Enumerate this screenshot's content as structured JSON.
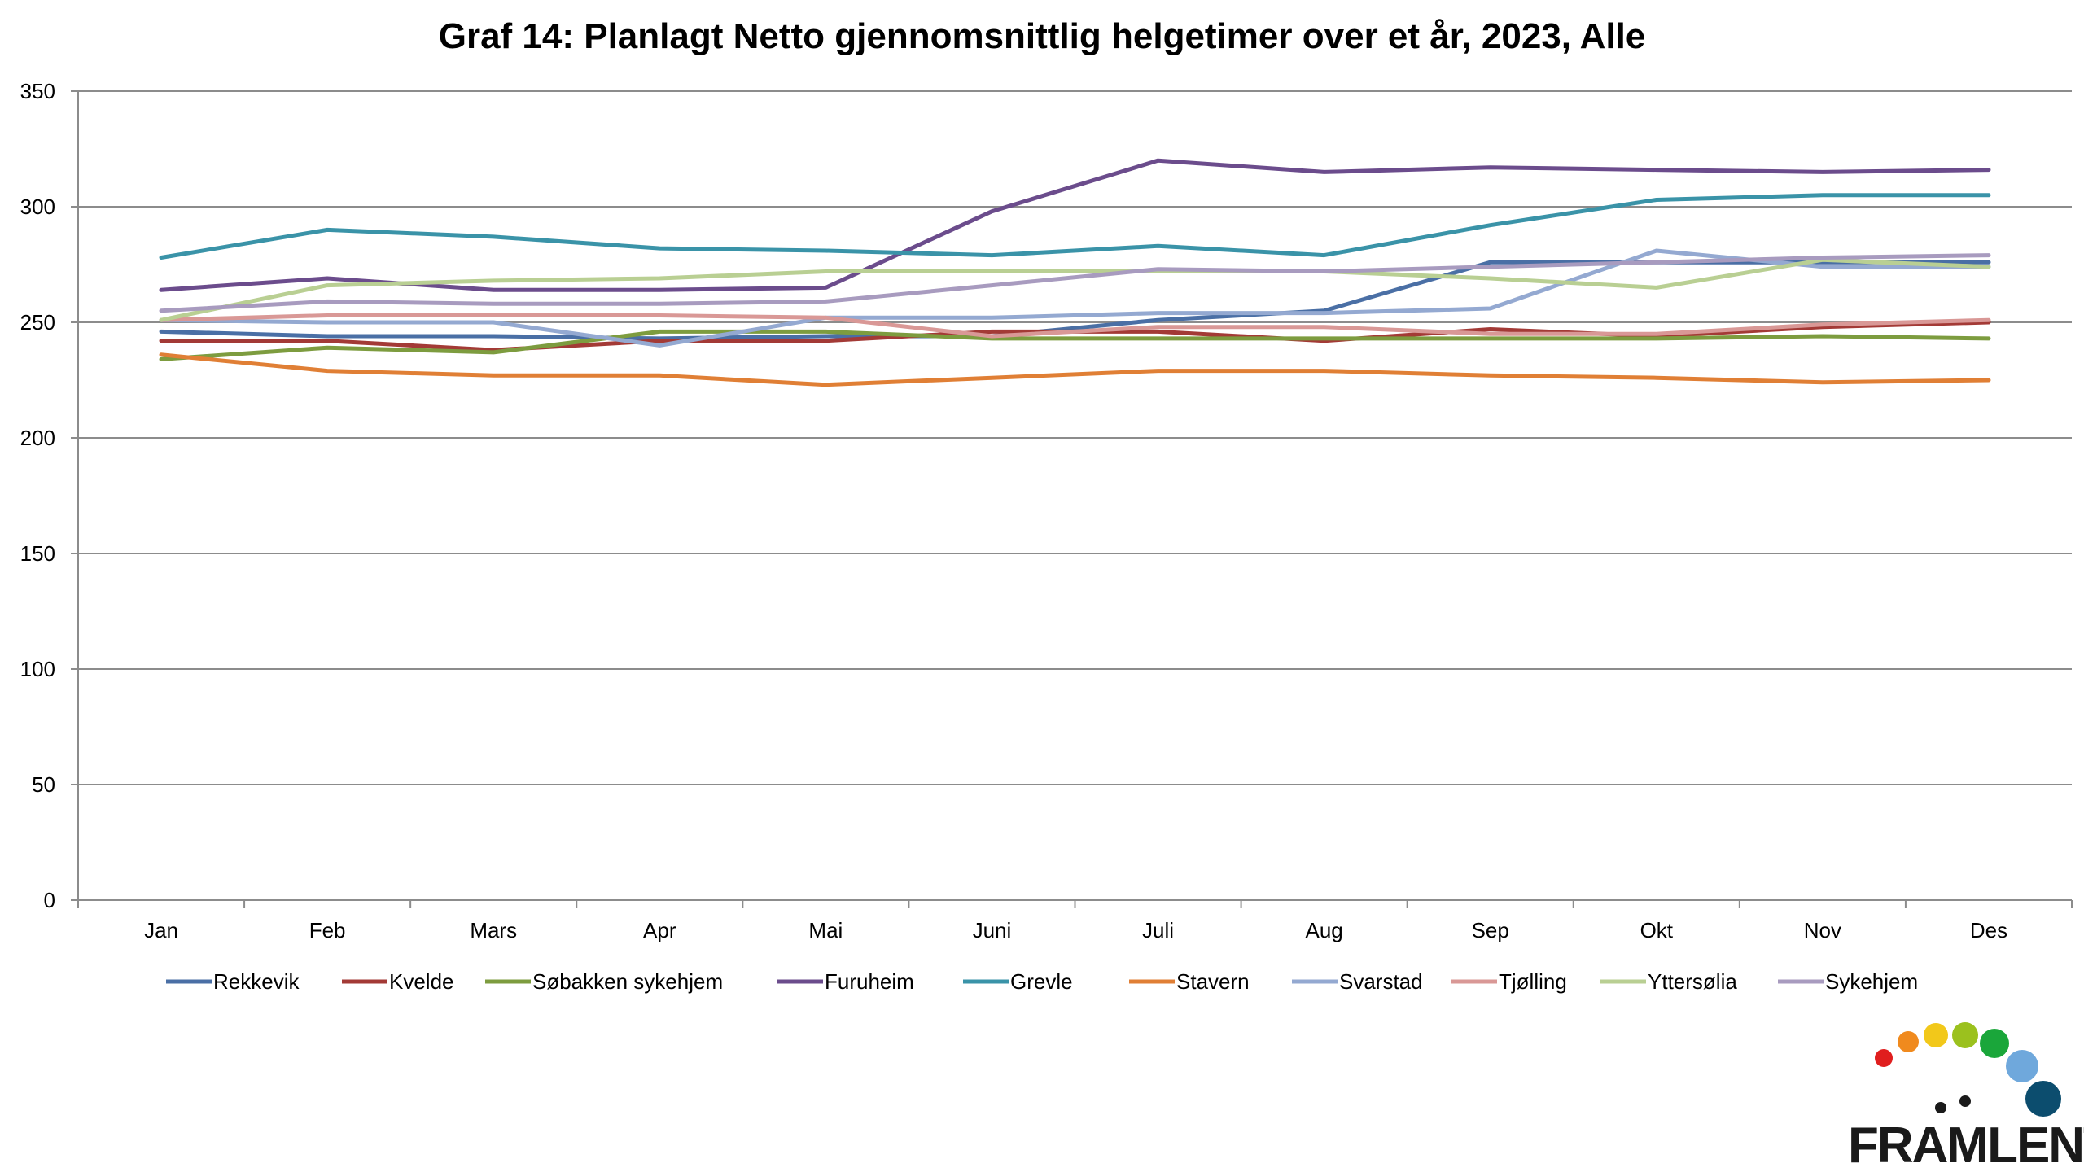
{
  "chart_data": {
    "type": "line",
    "title": "Graf 14: Planlagt Netto gjennomsnittlig helgetimer over et år, 2023, Alle",
    "xlabel": "",
    "ylabel": "",
    "ylim": [
      0,
      350
    ],
    "yticks": [
      0,
      50,
      100,
      150,
      200,
      250,
      300,
      350
    ],
    "grid": true,
    "legend_position": "bottom",
    "categories": [
      "Jan",
      "Feb",
      "Mars",
      "Apr",
      "Mai",
      "Juni",
      "Juli",
      "Aug",
      "Sep",
      "Okt",
      "Nov",
      "Des"
    ],
    "series": [
      {
        "name": "Rekkevik",
        "color": "#4a6fa5",
        "values": [
          246,
          244,
          244,
          243,
          244,
          244,
          251,
          255,
          276,
          276,
          276,
          276
        ]
      },
      {
        "name": "Kvelde",
        "color": "#a33a36",
        "values": [
          242,
          242,
          238,
          242,
          242,
          246,
          246,
          242,
          247,
          244,
          248,
          250
        ]
      },
      {
        "name": "Søbakken sykehjem",
        "color": "#7d9c3f",
        "values": [
          234,
          239,
          237,
          246,
          246,
          243,
          243,
          243,
          243,
          243,
          244,
          243
        ]
      },
      {
        "name": "Furuheim",
        "color": "#6b4c8c",
        "values": [
          264,
          269,
          264,
          264,
          265,
          298,
          320,
          315,
          317,
          316,
          315,
          316
        ]
      },
      {
        "name": "Grevle",
        "color": "#3a93a8",
        "values": [
          278,
          290,
          287,
          282,
          281,
          279,
          283,
          279,
          292,
          303,
          305,
          305
        ]
      },
      {
        "name": "Stavern",
        "color": "#e07f35",
        "values": [
          236,
          229,
          227,
          227,
          223,
          226,
          229,
          229,
          227,
          226,
          224,
          225
        ]
      },
      {
        "name": "Svarstad",
        "color": "#94a9d1",
        "values": [
          251,
          250,
          250,
          240,
          252,
          252,
          254,
          254,
          256,
          281,
          274,
          274
        ]
      },
      {
        "name": "Tjølling",
        "color": "#d99896",
        "values": [
          251,
          253,
          253,
          253,
          252,
          244,
          248,
          248,
          245,
          245,
          249,
          251
        ]
      },
      {
        "name": "Yttersølia",
        "color": "#b9cf93",
        "values": [
          251,
          266,
          268,
          269,
          272,
          272,
          272,
          272,
          269,
          265,
          277,
          274
        ]
      },
      {
        "name": "Sykehjem",
        "color": "#a89bbf",
        "values": [
          255,
          259,
          258,
          258,
          259,
          266,
          273,
          272,
          274,
          276,
          278,
          279
        ]
      }
    ]
  },
  "logo": {
    "text": "FRAMLENT",
    "dot_colors": [
      "#e01e1e",
      "#f08a1e",
      "#f2c81a",
      "#9bc11e",
      "#1aa63a",
      "#6fa8dc",
      "#0c4d6e"
    ]
  }
}
